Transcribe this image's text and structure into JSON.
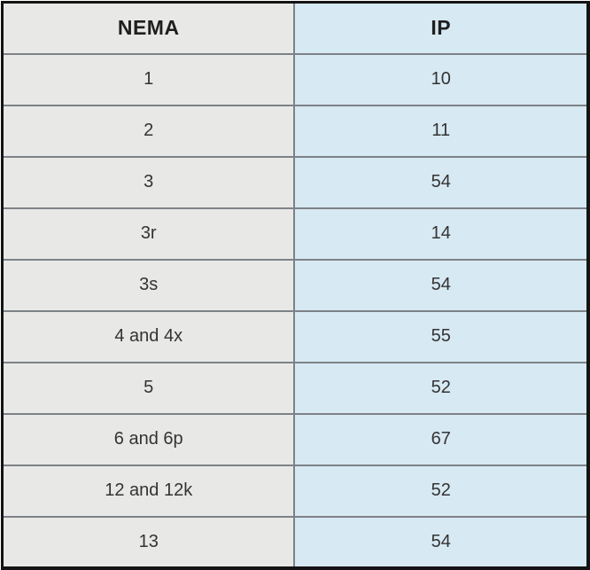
{
  "colors": {
    "outer_border": "#141414",
    "grid_line": "#7d8286",
    "nema_column_bg": "#e8e8e6",
    "ip_column_bg": "#d7e9f3",
    "header_text": "#1f1f1f",
    "body_text": "#333333"
  },
  "chart_data": {
    "type": "table",
    "title": "",
    "columns": [
      "NEMA",
      "IP"
    ],
    "rows": [
      [
        "1",
        "10"
      ],
      [
        "2",
        "11"
      ],
      [
        "3",
        "54"
      ],
      [
        "3r",
        "14"
      ],
      [
        "3s",
        "54"
      ],
      [
        "4 and 4x",
        "55"
      ],
      [
        "5",
        "52"
      ],
      [
        "6 and 6p",
        "67"
      ],
      [
        "12 and 12k",
        "52"
      ],
      [
        "13",
        "54"
      ]
    ],
    "layout": {
      "header_row": true,
      "grid": true,
      "nema_column_width_pct": 49.5,
      "ip_column_width_pct": 50.5
    }
  }
}
